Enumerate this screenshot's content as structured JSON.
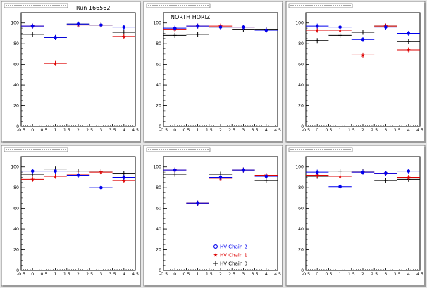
{
  "run_label": "Run 166562",
  "colors": {
    "hv_chain_2": "#0000ee",
    "hv_chain_1": "#dd0000",
    "hv_chain_0": "#000000",
    "pad_bg": "#ffffff",
    "canvas_bg": "#e6e6e6"
  },
  "chart_data": [
    {
      "type": "scatter",
      "title": "",
      "annotation": "",
      "xlim": [
        -0.5,
        4.5
      ],
      "ylim": [
        0,
        110
      ],
      "x_ticks": [
        "-0.5",
        "0",
        "0.5",
        "1",
        "1.5",
        "2",
        "2.5",
        "3",
        "3.5",
        "4",
        "4.5"
      ],
      "y_ticks": [
        "0",
        "20",
        "40",
        "60",
        "80",
        "100"
      ],
      "series": [
        {
          "key": "hv_chain_2",
          "points": [
            {
              "x": 0,
              "y": 97
            },
            {
              "x": 1,
              "y": 86
            },
            {
              "x": 2,
              "y": 99
            },
            {
              "x": 3,
              "y": 98
            },
            {
              "x": 4,
              "y": 96
            }
          ]
        },
        {
          "key": "hv_chain_1",
          "points": [
            {
              "x": 0,
              "y": 97
            },
            {
              "x": 1,
              "y": 61
            },
            {
              "x": 2,
              "y": 98
            },
            {
              "x": 3,
              "y": 98
            },
            {
              "x": 4,
              "y": 87
            }
          ]
        },
        {
          "key": "hv_chain_0",
          "points": [
            {
              "x": 0,
              "y": 89
            },
            {
              "x": 1,
              "y": 86
            },
            {
              "x": 2,
              "y": 99
            },
            {
              "x": 3,
              "y": 98
            },
            {
              "x": 4,
              "y": 91
            }
          ]
        }
      ]
    },
    {
      "type": "scatter",
      "title": "",
      "annotation": "NORTH HORIZ",
      "xlim": [
        -0.5,
        4.5
      ],
      "ylim": [
        0,
        110
      ],
      "x_ticks": [
        "-0.5",
        "0",
        "0.5",
        "1",
        "1.5",
        "2",
        "2.5",
        "3",
        "3.5",
        "4",
        "4.5"
      ],
      "y_ticks": [
        "0",
        "20",
        "40",
        "60",
        "80",
        "100"
      ],
      "series": [
        {
          "key": "hv_chain_2",
          "points": [
            {
              "x": 0,
              "y": 95
            },
            {
              "x": 1,
              "y": 97
            },
            {
              "x": 2,
              "y": 96
            },
            {
              "x": 3,
              "y": 96
            },
            {
              "x": 4,
              "y": 93
            }
          ]
        },
        {
          "key": "hv_chain_1",
          "points": [
            {
              "x": 0,
              "y": 94
            },
            {
              "x": 1,
              "y": 97
            },
            {
              "x": 2,
              "y": 97
            },
            {
              "x": 3,
              "y": 96
            },
            {
              "x": 4,
              "y": 93
            }
          ]
        },
        {
          "key": "hv_chain_0",
          "points": [
            {
              "x": 0,
              "y": 88
            },
            {
              "x": 1,
              "y": 89
            },
            {
              "x": 2,
              "y": 96
            },
            {
              "x": 3,
              "y": 94
            },
            {
              "x": 4,
              "y": 94
            }
          ]
        }
      ]
    },
    {
      "type": "scatter",
      "title": "",
      "annotation": "",
      "xlim": [
        -0.5,
        4.5
      ],
      "ylim": [
        0,
        110
      ],
      "x_ticks": [
        "-0.5",
        "0",
        "0.5",
        "1",
        "1.5",
        "2",
        "2.5",
        "3",
        "3.5",
        "4",
        "4.5"
      ],
      "y_ticks": [
        "0",
        "20",
        "40",
        "60",
        "80",
        "100"
      ],
      "series": [
        {
          "key": "hv_chain_2",
          "points": [
            {
              "x": 0,
              "y": 97
            },
            {
              "x": 1,
              "y": 96
            },
            {
              "x": 2,
              "y": 84
            },
            {
              "x": 3,
              "y": 96
            },
            {
              "x": 4,
              "y": 90
            }
          ]
        },
        {
          "key": "hv_chain_1",
          "points": [
            {
              "x": 0,
              "y": 93
            },
            {
              "x": 1,
              "y": 93
            },
            {
              "x": 2,
              "y": 69
            },
            {
              "x": 3,
              "y": 97
            },
            {
              "x": 4,
              "y": 74
            }
          ]
        },
        {
          "key": "hv_chain_0",
          "points": [
            {
              "x": 0,
              "y": 83
            },
            {
              "x": 1,
              "y": 88
            },
            {
              "x": 2,
              "y": 91
            },
            {
              "x": 3,
              "y": 97
            },
            {
              "x": 4,
              "y": 82
            }
          ]
        }
      ]
    },
    {
      "type": "scatter",
      "title": "",
      "annotation": "",
      "xlim": [
        -0.5,
        4.5
      ],
      "ylim": [
        0,
        110
      ],
      "x_ticks": [
        "-0.5",
        "0",
        "0.5",
        "1",
        "1.5",
        "2",
        "2.5",
        "3",
        "3.5",
        "4",
        "4.5"
      ],
      "y_ticks": [
        "0",
        "20",
        "40",
        "60",
        "80",
        "100"
      ],
      "series": [
        {
          "key": "hv_chain_2",
          "points": [
            {
              "x": 0,
              "y": 96
            },
            {
              "x": 1,
              "y": 96
            },
            {
              "x": 2,
              "y": 92
            },
            {
              "x": 3,
              "y": 80
            },
            {
              "x": 4,
              "y": 90
            }
          ]
        },
        {
          "key": "hv_chain_1",
          "points": [
            {
              "x": 0,
              "y": 88
            },
            {
              "x": 1,
              "y": 91
            },
            {
              "x": 2,
              "y": 93
            },
            {
              "x": 3,
              "y": 95
            },
            {
              "x": 4,
              "y": 87
            }
          ]
        },
        {
          "key": "hv_chain_0",
          "points": [
            {
              "x": 0,
              "y": 93
            },
            {
              "x": 1,
              "y": 98
            },
            {
              "x": 2,
              "y": 96
            },
            {
              "x": 3,
              "y": 96
            },
            {
              "x": 4,
              "y": 94
            }
          ]
        }
      ]
    },
    {
      "type": "scatter",
      "title": "",
      "annotation": "",
      "xlim": [
        -0.5,
        4.5
      ],
      "ylim": [
        0,
        110
      ],
      "x_ticks": [
        "-0.5",
        "0",
        "0.5",
        "1",
        "1.5",
        "2",
        "2.5",
        "3",
        "3.5",
        "4",
        "4.5"
      ],
      "y_ticks": [
        "0",
        "20",
        "40",
        "60",
        "80",
        "100"
      ],
      "legend": {
        "placement": "bottom-right",
        "entries": [
          {
            "key": "hv_chain_2",
            "label": "HV Chain 2",
            "marker": "circle"
          },
          {
            "key": "hv_chain_1",
            "label": "HV Chain 1",
            "marker": "star"
          },
          {
            "key": "hv_chain_0",
            "label": "HV Chain 0",
            "marker": "cross"
          }
        ]
      },
      "series": [
        {
          "key": "hv_chain_2",
          "points": [
            {
              "x": 0,
              "y": 97
            },
            {
              "x": 1,
              "y": 65
            },
            {
              "x": 2,
              "y": 90
            },
            {
              "x": 3,
              "y": 97
            },
            {
              "x": 4,
              "y": 91
            }
          ]
        },
        {
          "key": "hv_chain_1",
          "points": [
            {
              "x": 0,
              "y": 97
            },
            {
              "x": 1,
              "y": 65
            },
            {
              "x": 2,
              "y": 89
            },
            {
              "x": 3,
              "y": 97
            },
            {
              "x": 4,
              "y": 92
            }
          ]
        },
        {
          "key": "hv_chain_0",
          "points": [
            {
              "x": 0,
              "y": 93
            },
            {
              "x": 1,
              "y": 65
            },
            {
              "x": 2,
              "y": 93
            },
            {
              "x": 3,
              "y": 97
            },
            {
              "x": 4,
              "y": 87
            }
          ]
        }
      ]
    },
    {
      "type": "scatter",
      "title": "",
      "annotation": "",
      "xlim": [
        -0.5,
        4.5
      ],
      "ylim": [
        0,
        110
      ],
      "x_ticks": [
        "-0.5",
        "0",
        "0.5",
        "1",
        "1.5",
        "2",
        "2.5",
        "3",
        "3.5",
        "4",
        "4.5"
      ],
      "y_ticks": [
        "0",
        "20",
        "40",
        "60",
        "80",
        "100"
      ],
      "series": [
        {
          "key": "hv_chain_2",
          "points": [
            {
              "x": 0,
              "y": 95
            },
            {
              "x": 1,
              "y": 81
            },
            {
              "x": 2,
              "y": 95
            },
            {
              "x": 3,
              "y": 94
            },
            {
              "x": 4,
              "y": 96
            }
          ]
        },
        {
          "key": "hv_chain_1",
          "points": [
            {
              "x": 0,
              "y": 92
            },
            {
              "x": 1,
              "y": 91
            },
            {
              "x": 2,
              "y": 95
            },
            {
              "x": 3,
              "y": 94
            },
            {
              "x": 4,
              "y": 90
            }
          ]
        },
        {
          "key": "hv_chain_0",
          "points": [
            {
              "x": 0,
              "y": 91
            },
            {
              "x": 1,
              "y": 96
            },
            {
              "x": 2,
              "y": 96
            },
            {
              "x": 3,
              "y": 87
            },
            {
              "x": 4,
              "y": 88
            }
          ]
        }
      ]
    }
  ]
}
